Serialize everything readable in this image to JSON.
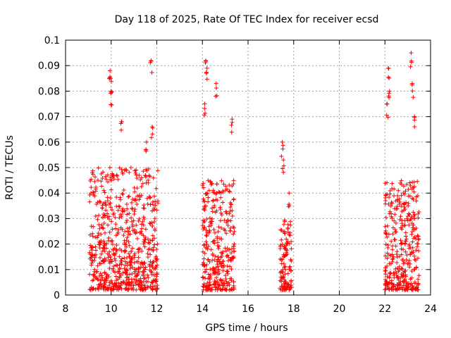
{
  "chart_data": {
    "type": "scatter",
    "title": "Day 118 of 2025, Rate Of TEC Index for receiver ecsd",
    "xlabel": "GPS time / hours",
    "ylabel": "ROTI / TECUs",
    "xlim": [
      8,
      24
    ],
    "ylim": [
      0,
      0.1
    ],
    "x_ticks": [
      "8",
      "10",
      "12",
      "14",
      "16",
      "18",
      "20",
      "22",
      "24"
    ],
    "y_ticks": [
      "0",
      "0.01",
      "0.02",
      "0.03",
      "0.04",
      "0.05",
      "0.06",
      "0.07",
      "0.08",
      "0.09",
      "0.1"
    ],
    "grid": true,
    "marker": "+",
    "color": "#ff0000",
    "clusters": [
      {
        "x_range": [
          9.05,
          12.05
        ],
        "typical_range": [
          0.002,
          0.05
        ],
        "peak_values": [
          [
            9.95,
            0.088
          ],
          [
            9.98,
            0.085
          ],
          [
            10.0,
            0.08
          ],
          [
            10.45,
            0.068
          ],
          [
            11.75,
            0.092
          ],
          [
            11.8,
            0.066
          ],
          [
            11.55,
            0.06
          ]
        ]
      },
      {
        "x_range": [
          14.0,
          15.4
        ],
        "typical_range": [
          0.002,
          0.045
        ],
        "peak_values": [
          [
            14.15,
            0.092
          ],
          [
            14.2,
            0.089
          ],
          [
            14.6,
            0.083
          ],
          [
            14.1,
            0.075
          ],
          [
            15.3,
            0.069
          ]
        ]
      },
      {
        "x_range": [
          17.4,
          17.9
        ],
        "typical_range": [
          0.002,
          0.03
        ],
        "peak_values": [
          [
            17.5,
            0.06
          ],
          [
            17.55,
            0.053
          ],
          [
            17.8,
            0.04
          ]
        ]
      },
      {
        "x_range": [
          22.0,
          23.5
        ],
        "typical_range": [
          0.002,
          0.045
        ],
        "peak_values": [
          [
            23.15,
            0.095
          ],
          [
            22.15,
            0.089
          ],
          [
            22.2,
            0.08
          ],
          [
            23.2,
            0.083
          ],
          [
            22.1,
            0.075
          ],
          [
            23.3,
            0.07
          ]
        ]
      }
    ]
  }
}
